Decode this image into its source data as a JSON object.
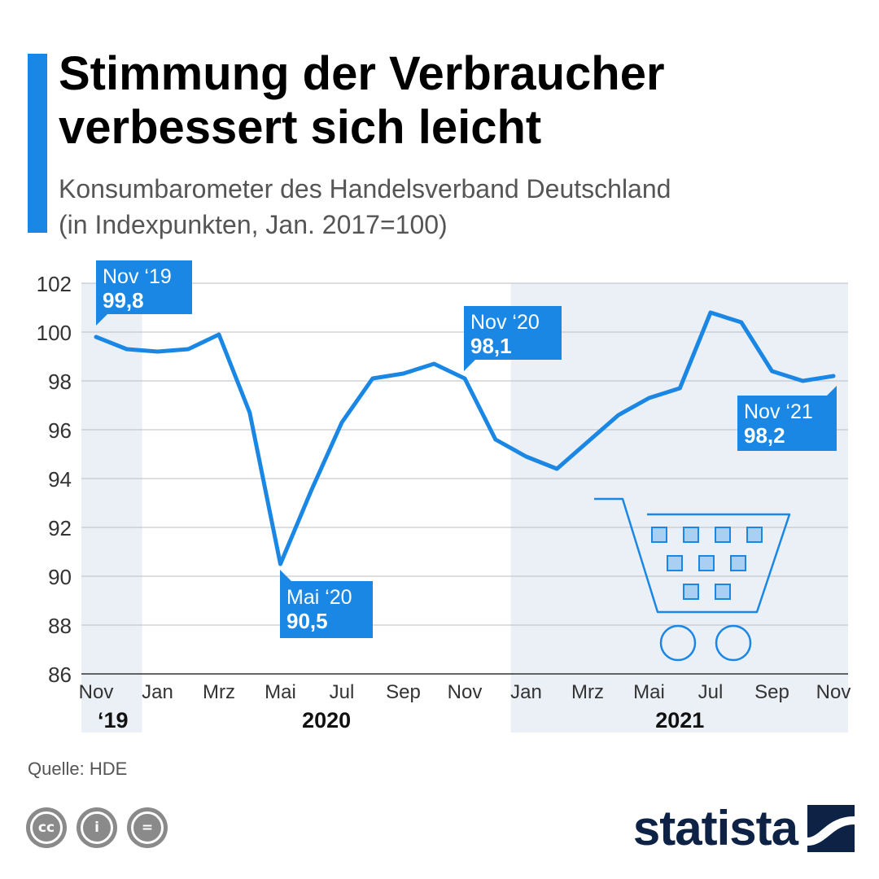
{
  "header": {
    "title_lines": [
      "Stimmung der Verbraucher",
      "verbessert sich leicht"
    ],
    "subtitle_lines": [
      "Konsumbarometer des Handelsverband Deutschland",
      "(in Indexpunkten, Jan. 2017=100)"
    ]
  },
  "chart_data": {
    "type": "line",
    "x": [
      "Nov 2019",
      "Dez 2019",
      "Jan 2020",
      "Feb 2020",
      "Mrz 2020",
      "Apr 2020",
      "Mai 2020",
      "Jun 2020",
      "Jul 2020",
      "Aug 2020",
      "Sep 2020",
      "Okt 2020",
      "Nov 2020",
      "Dez 2020",
      "Jan 2021",
      "Feb 2021",
      "Mrz 2021",
      "Apr 2021",
      "Mai 2021",
      "Jun 2021",
      "Jul 2021",
      "Aug 2021",
      "Sep 2021",
      "Okt 2021",
      "Nov 2021"
    ],
    "series": [
      {
        "values": [
          99.8,
          99.3,
          99.2,
          99.3,
          99.9,
          96.7,
          90.5,
          93.5,
          96.3,
          98.1,
          98.3,
          98.7,
          98.1,
          95.6,
          94.9,
          94.4,
          95.5,
          96.6,
          97.3,
          97.7,
          100.8,
          100.4,
          98.4,
          98.0,
          98.2
        ]
      }
    ],
    "ylim": [
      86,
      102
    ],
    "y_ticks": [
      "86",
      "88",
      "90",
      "92",
      "94",
      "96",
      "98",
      "100",
      "102"
    ],
    "x_tick_labels": [
      "Nov",
      "Jan",
      "Mrz",
      "Mai",
      "Jul",
      "Sep",
      "Nov",
      "Jan",
      "Mrz",
      "Mai",
      "Jul",
      "Sep",
      "Nov"
    ],
    "year_labels": [
      "‘19",
      "2020",
      "2021"
    ],
    "grid": true,
    "line_color": "#1a87e4",
    "band_color": "#ebeff6",
    "annotations": [
      {
        "month": "Nov ‘19",
        "value": "99,8"
      },
      {
        "month": "Nov ‘20",
        "value": "98,1"
      },
      {
        "month": "Mai ‘20",
        "value": "90,5"
      },
      {
        "month": "Nov ‘21",
        "value": "98,2"
      }
    ]
  },
  "footer": {
    "source": "Quelle: HDE",
    "license_icons": [
      "cc-icon",
      "attribution-icon",
      "no-derivatives-icon"
    ],
    "license_glyphs": [
      "cc",
      "i",
      "="
    ],
    "brand": "statista"
  }
}
